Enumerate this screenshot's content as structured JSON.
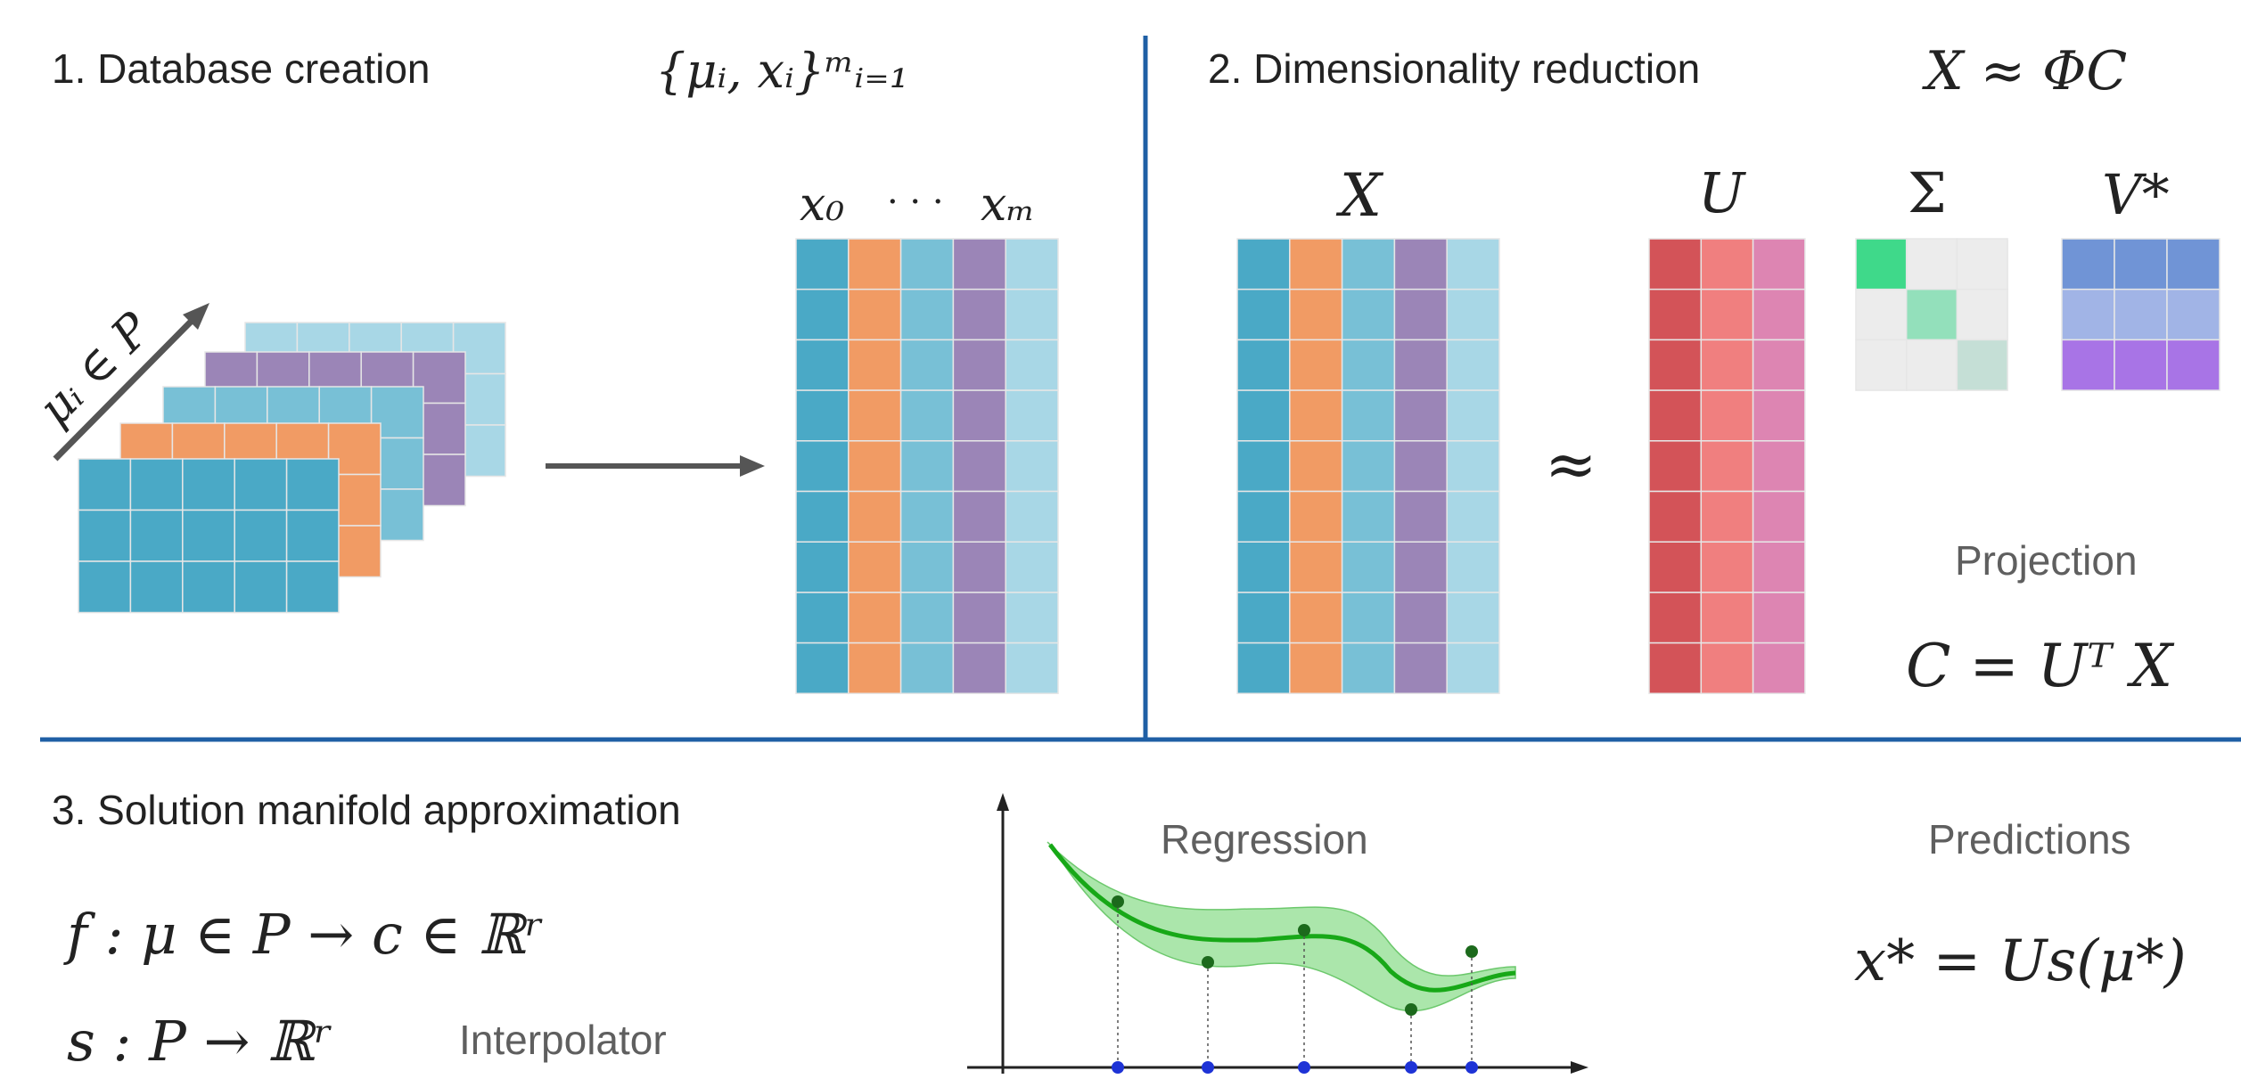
{
  "sections": {
    "database": {
      "title": "1. Database creation",
      "set_formula": "{μᵢ, xᵢ}ᵐᵢ₌₁",
      "axis_label": "μᵢ ∈ P",
      "matrix_header_first": "x₀",
      "matrix_header_dots": "· · ·",
      "matrix_header_last": "xₘ"
    },
    "reduction": {
      "title": "2. Dimensionality reduction",
      "approx_formula": "X ≈ ΦC",
      "label_X": "X",
      "approx_symbol": "≈",
      "label_U": "U",
      "label_Sigma": "Σ",
      "label_V": "V*",
      "projection_label": "Projection",
      "projection_formula": "C = Uᵀ X"
    },
    "manifold": {
      "title": "3. Solution manifold approximation",
      "map_formula": "f : μ ∈ P → c ∈ ℝʳ",
      "interp_formula": "s : P → ℝʳ",
      "interp_label": "Interpolator",
      "regression_label": "Regression",
      "predictions_label": "Predictions",
      "prediction_formula": "x* = Us(μ*)"
    }
  },
  "colors": {
    "divider": "#1f5fa5",
    "snapshot_col_1": "#4aa9c6",
    "snapshot_col_2": "#f19b64",
    "snapshot_col_3": "#78c0d6",
    "snapshot_col_4": "#9b85b7",
    "snapshot_col_5": "#a8d7e6",
    "U_col_1": "#d35358",
    "U_col_2": "#f07f7f",
    "U_col_3": "#dd85b2",
    "sigma_1": "#3fd98a",
    "sigma_2": "#93e0bb",
    "sigma_3": "#c5dfd6",
    "sigma_off": "#ececec",
    "V_row_1": "#7094d6",
    "V_row_2": "#a1b4e6",
    "V_row_3": "#a874e6",
    "arrow": "#555555",
    "curve": "#17a817",
    "band": "#8fde8f",
    "point": "#1c6a1c",
    "axis_point": "#1e33d6",
    "label_gray": "#5f5f5f"
  }
}
